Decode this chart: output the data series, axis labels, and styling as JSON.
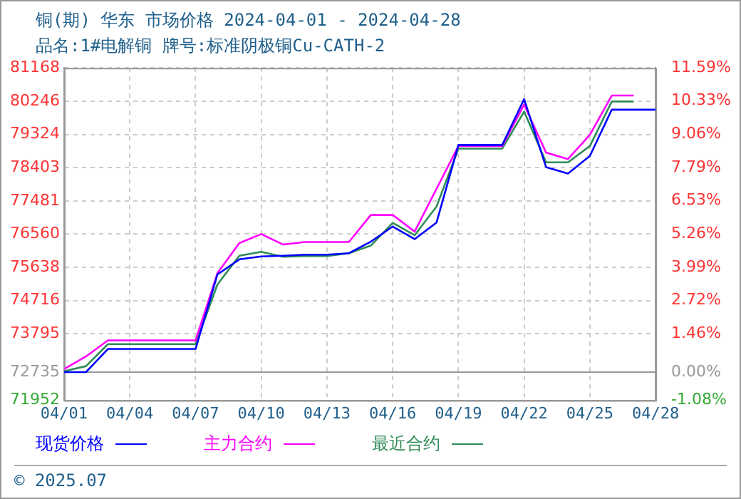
{
  "chart_data": {
    "type": "line",
    "title": "铜(期) 华东 市场价格 2024-04-01 - 2024-04-28",
    "subtitle": "品名:1#电解铜 牌号:标准阴极铜Cu-CATH-2",
    "x": [
      "2024-04-01",
      "2024-04-02",
      "2024-04-03",
      "2024-04-04",
      "2024-04-05",
      "2024-04-06",
      "2024-04-07",
      "2024-04-08",
      "2024-04-09",
      "2024-04-10",
      "2024-04-11",
      "2024-04-12",
      "2024-04-13",
      "2024-04-14",
      "2024-04-15",
      "2024-04-16",
      "2024-04-17",
      "2024-04-18",
      "2024-04-19",
      "2024-04-20",
      "2024-04-21",
      "2024-04-22",
      "2024-04-23",
      "2024-04-24",
      "2024-04-25",
      "2024-04-26",
      "2024-04-27",
      "2024-04-28"
    ],
    "series": [
      {
        "name": "现货价格",
        "color": "#0000ff",
        "values": [
          72735,
          72735,
          73376,
          73376,
          73376,
          73376,
          73376,
          75442,
          75860,
          75940,
          75960,
          75990,
          75990,
          76030,
          76350,
          76770,
          76420,
          76880,
          79030,
          79030,
          79030,
          80301,
          78416,
          78236,
          78726,
          80008,
          80008,
          80008
        ]
      },
      {
        "name": "主力合约",
        "color": "#ff00ff",
        "values": [
          72820,
          73170,
          73615,
          73615,
          73615,
          73615,
          73615,
          75480,
          76310,
          76560,
          76270,
          76340,
          76340,
          76340,
          77090,
          77090,
          76630,
          77815,
          79000,
          79000,
          79000,
          80150,
          78820,
          78640,
          79310,
          80400,
          80400,
          null
        ]
      },
      {
        "name": "最近合约",
        "color": "#2e8b57",
        "values": [
          72760,
          72900,
          73510,
          73510,
          73510,
          73510,
          73510,
          75165,
          75960,
          76070,
          75930,
          75950,
          75950,
          76030,
          76240,
          76870,
          76530,
          77325,
          78930,
          78930,
          78930,
          79955,
          78550,
          78550,
          79000,
          80235,
          80235,
          null
        ]
      }
    ],
    "xlim": [
      "2024-04-01",
      "2024-04-28"
    ],
    "xticks": [
      {
        "value": "2024-04-01",
        "label": "04/01"
      },
      {
        "value": "2024-04-04",
        "label": "04/04"
      },
      {
        "value": "2024-04-07",
        "label": "04/07"
      },
      {
        "value": "2024-04-10",
        "label": "04/10"
      },
      {
        "value": "2024-04-13",
        "label": "04/13"
      },
      {
        "value": "2024-04-16",
        "label": "04/16"
      },
      {
        "value": "2024-04-19",
        "label": "04/19"
      },
      {
        "value": "2024-04-22",
        "label": "04/22"
      },
      {
        "value": "2024-04-25",
        "label": "04/25"
      },
      {
        "value": "2024-04-28",
        "label": "04/28"
      }
    ],
    "ylim": [
      71952,
      81168
    ],
    "yticks": [
      71952,
      72735,
      73795,
      74716,
      75638,
      76560,
      77481,
      78403,
      79324,
      80246,
      81168
    ],
    "y2lim": [
      -1.08,
      11.59
    ],
    "y2ticks": [
      {
        "value": -1.08,
        "label": "-1.08%"
      },
      {
        "value": 0,
        "label": "0.00%"
      },
      {
        "value": 1.46,
        "label": "1.46%"
      },
      {
        "value": 2.72,
        "label": "2.72%"
      },
      {
        "value": 3.99,
        "label": "3.99%"
      },
      {
        "value": 5.26,
        "label": "5.26%"
      },
      {
        "value": 6.53,
        "label": "6.53%"
      },
      {
        "value": 7.79,
        "label": "7.79%"
      },
      {
        "value": 9.06,
        "label": "9.06%"
      },
      {
        "value": 10.33,
        "label": "10.33%"
      },
      {
        "value": 11.59,
        "label": "11.59%"
      }
    ],
    "ref_lines": [
      {
        "axis": "y",
        "value": 72735,
        "color": "#999999"
      }
    ],
    "grid": true,
    "legend": "bottom",
    "marker": "none",
    "line_style": "solid",
    "annotations": [
      "© 2025.07"
    ]
  }
}
